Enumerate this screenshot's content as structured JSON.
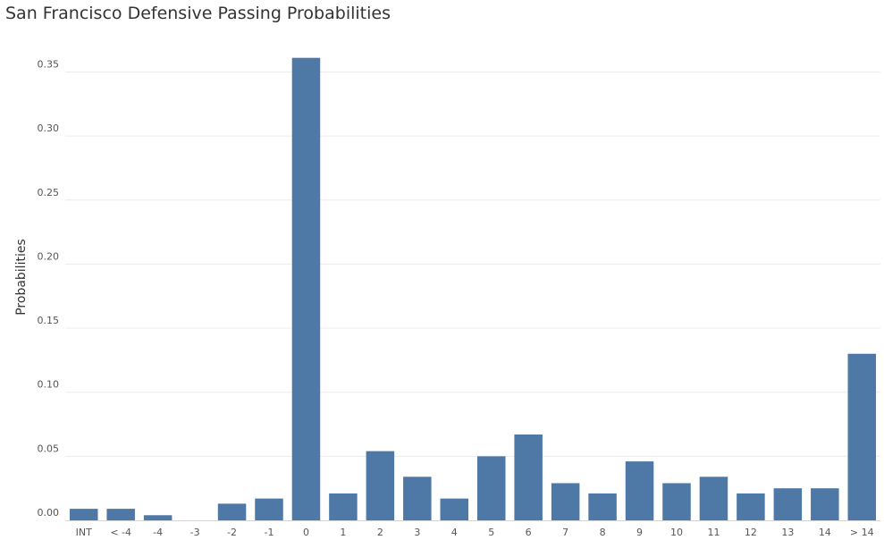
{
  "chart_data": {
    "type": "bar",
    "title": "San Francisco Defensive Passing Probabilities",
    "xlabel": "",
    "ylabel": "Probabilities",
    "categories": [
      "INT",
      "< -4",
      "-4",
      "-3",
      "-2",
      "-1",
      "0",
      "1",
      "2",
      "3",
      "4",
      "5",
      "6",
      "7",
      "8",
      "9",
      "10",
      "11",
      "12",
      "13",
      "14",
      "> 14"
    ],
    "values": [
      0.009,
      0.009,
      0.004,
      0.0,
      0.013,
      0.017,
      0.361,
      0.021,
      0.054,
      0.034,
      0.017,
      0.05,
      0.067,
      0.029,
      0.021,
      0.046,
      0.029,
      0.034,
      0.021,
      0.025,
      0.025,
      0.13
    ],
    "ylim": [
      0,
      0.36
    ],
    "yticks": [
      "0.00",
      "0.05",
      "0.10",
      "0.15",
      "0.20",
      "0.25",
      "0.30",
      "0.35"
    ],
    "grid": true,
    "bar_color": "#4e79a7"
  }
}
